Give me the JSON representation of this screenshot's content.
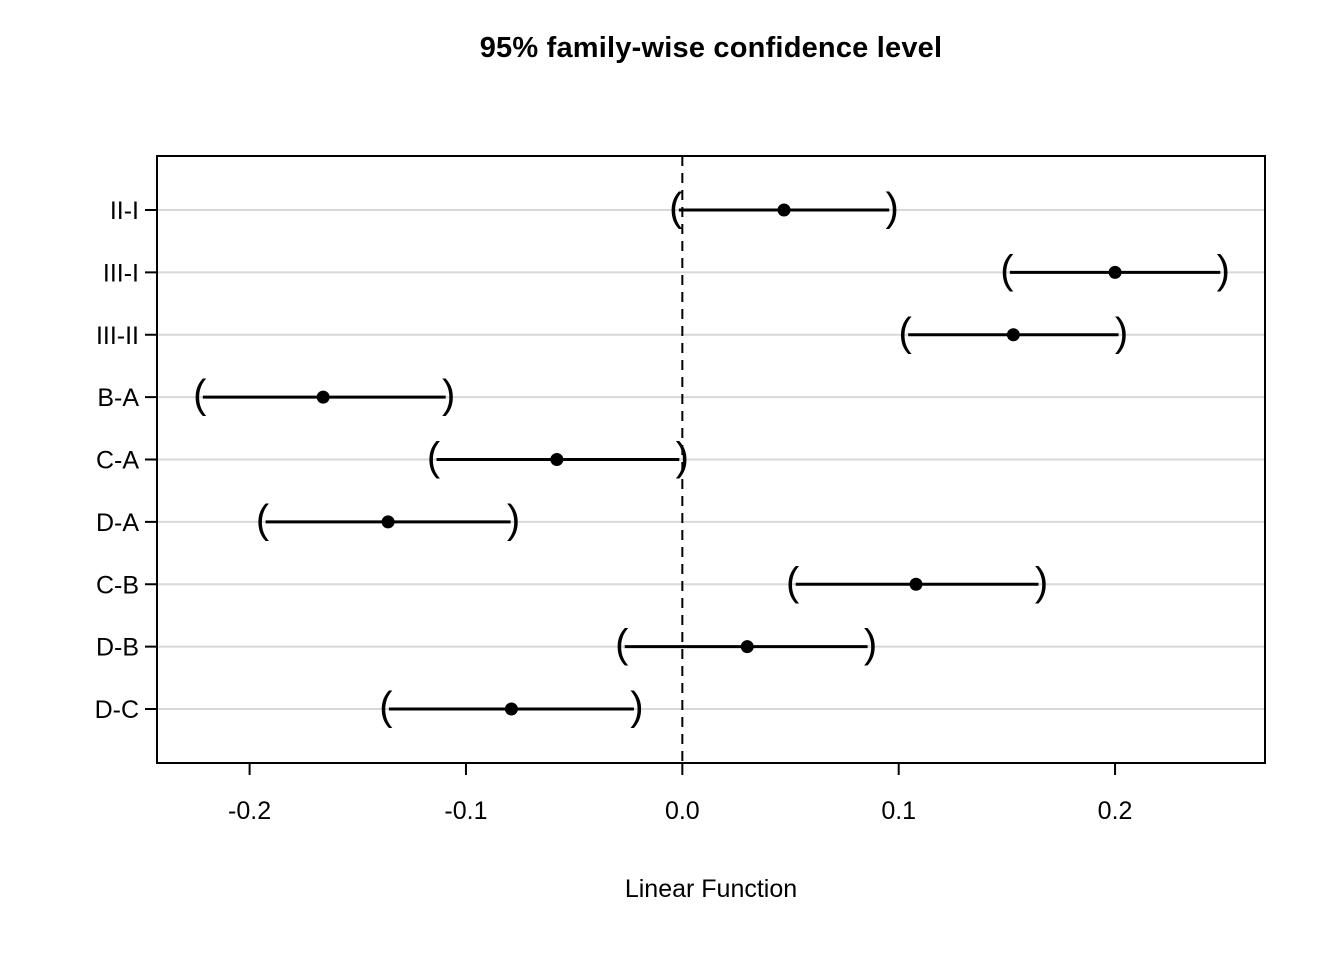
{
  "chart_data": {
    "type": "interval",
    "title": "95% family-wise confidence level",
    "xlabel": "Linear Function",
    "confidence_level": "95%",
    "x_ticks": [
      -0.2,
      -0.1,
      0.0,
      0.1,
      0.2
    ],
    "x_tick_labels": [
      "-0.2",
      "-0.1",
      "0.0",
      "0.1",
      "0.2"
    ],
    "xlim": [
      -0.2428,
      0.2693
    ],
    "reference_line_x": 0.0,
    "grid": true,
    "legend": "none",
    "comparisons": [
      {
        "label": "II-I",
        "estimate": 0.047,
        "lower": -0.003,
        "upper": 0.097
      },
      {
        "label": "III-I",
        "estimate": 0.2,
        "lower": 0.15,
        "upper": 0.25
      },
      {
        "label": "III-II",
        "estimate": 0.153,
        "lower": 0.103,
        "upper": 0.203
      },
      {
        "label": "B-A",
        "estimate": -0.166,
        "lower": -0.223,
        "upper": -0.108
      },
      {
        "label": "C-A",
        "estimate": -0.058,
        "lower": -0.115,
        "upper": 0.0
      },
      {
        "label": "D-A",
        "estimate": -0.136,
        "lower": -0.194,
        "upper": -0.078
      },
      {
        "label": "C-B",
        "estimate": 0.108,
        "lower": 0.051,
        "upper": 0.166
      },
      {
        "label": "D-B",
        "estimate": 0.03,
        "lower": -0.028,
        "upper": 0.087
      },
      {
        "label": "D-C",
        "estimate": -0.079,
        "lower": -0.137,
        "upper": -0.021
      }
    ],
    "colors": {
      "interval": "#000000",
      "point": "#000000",
      "grid": "#d8d8d8",
      "reference": "#000000",
      "box": "#000000",
      "background": "#ffffff"
    }
  }
}
